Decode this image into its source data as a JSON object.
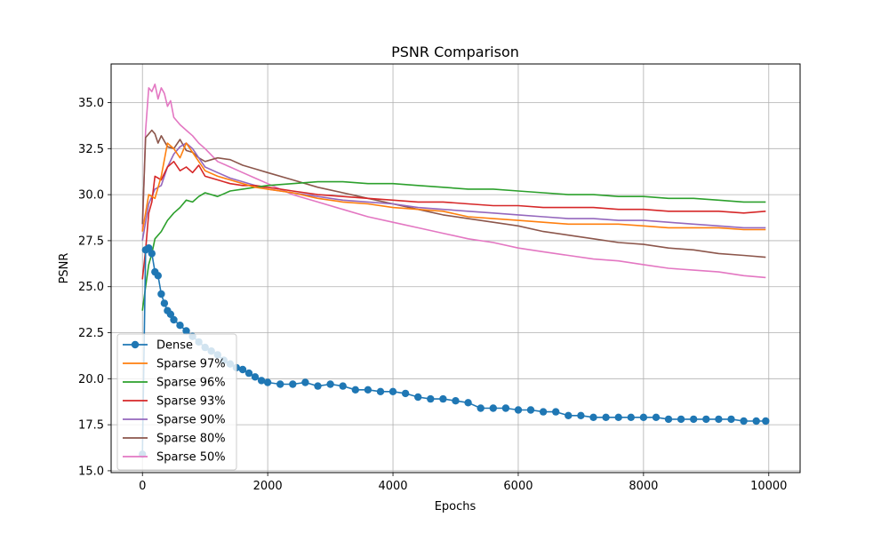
{
  "chart_data": {
    "type": "line",
    "title": "PSNR Comparison",
    "xlabel": "Epochs",
    "ylabel": "PSNR",
    "xlim": [
      -500,
      10500
    ],
    "ylim": [
      14.9,
      37.1
    ],
    "xticks": [
      0,
      2000,
      4000,
      6000,
      8000,
      10000
    ],
    "yticks": [
      15.0,
      17.5,
      20.0,
      22.5,
      25.0,
      27.5,
      30.0,
      32.5,
      35.0
    ],
    "grid": true,
    "legend_position": "lower-left",
    "series": [
      {
        "name": "Dense",
        "color": "#1f77b4",
        "marker": "circle",
        "points": [
          [
            0,
            15.9
          ],
          [
            50,
            27.0
          ],
          [
            100,
            27.1
          ],
          [
            150,
            26.8
          ],
          [
            200,
            25.8
          ],
          [
            250,
            25.6
          ],
          [
            300,
            24.6
          ],
          [
            350,
            24.1
          ],
          [
            400,
            23.7
          ],
          [
            450,
            23.5
          ],
          [
            500,
            23.2
          ],
          [
            600,
            22.9
          ],
          [
            700,
            22.6
          ],
          [
            800,
            22.3
          ],
          [
            900,
            22.0
          ],
          [
            1000,
            21.7
          ],
          [
            1100,
            21.5
          ],
          [
            1200,
            21.3
          ],
          [
            1300,
            21.0
          ],
          [
            1400,
            20.8
          ],
          [
            1500,
            20.6
          ],
          [
            1600,
            20.5
          ],
          [
            1700,
            20.3
          ],
          [
            1800,
            20.1
          ],
          [
            1900,
            19.9
          ],
          [
            2000,
            19.8
          ],
          [
            2200,
            19.7
          ],
          [
            2400,
            19.7
          ],
          [
            2600,
            19.8
          ],
          [
            2800,
            19.6
          ],
          [
            3000,
            19.7
          ],
          [
            3200,
            19.6
          ],
          [
            3400,
            19.4
          ],
          [
            3600,
            19.4
          ],
          [
            3800,
            19.3
          ],
          [
            4000,
            19.3
          ],
          [
            4200,
            19.2
          ],
          [
            4400,
            19.0
          ],
          [
            4600,
            18.9
          ],
          [
            4800,
            18.9
          ],
          [
            5000,
            18.8
          ],
          [
            5200,
            18.7
          ],
          [
            5400,
            18.4
          ],
          [
            5600,
            18.4
          ],
          [
            5800,
            18.4
          ],
          [
            6000,
            18.3
          ],
          [
            6200,
            18.3
          ],
          [
            6400,
            18.2
          ],
          [
            6600,
            18.2
          ],
          [
            6800,
            18.0
          ],
          [
            7000,
            18.0
          ],
          [
            7200,
            17.9
          ],
          [
            7400,
            17.9
          ],
          [
            7600,
            17.9
          ],
          [
            7800,
            17.9
          ],
          [
            8000,
            17.9
          ],
          [
            8200,
            17.9
          ],
          [
            8400,
            17.8
          ],
          [
            8600,
            17.8
          ],
          [
            8800,
            17.8
          ],
          [
            9000,
            17.8
          ],
          [
            9200,
            17.8
          ],
          [
            9400,
            17.8
          ],
          [
            9600,
            17.7
          ],
          [
            9800,
            17.7
          ],
          [
            9950,
            17.7
          ]
        ]
      },
      {
        "name": "Sparse 97%",
        "color": "#ff7f0e",
        "points": [
          [
            0,
            28.0
          ],
          [
            100,
            30.0
          ],
          [
            200,
            29.8
          ],
          [
            300,
            31.0
          ],
          [
            400,
            32.8
          ],
          [
            500,
            32.5
          ],
          [
            600,
            32.0
          ],
          [
            700,
            32.8
          ],
          [
            800,
            32.3
          ],
          [
            900,
            31.8
          ],
          [
            1000,
            31.3
          ],
          [
            1200,
            31.0
          ],
          [
            1400,
            30.8
          ],
          [
            1600,
            30.6
          ],
          [
            1800,
            30.4
          ],
          [
            2000,
            30.3
          ],
          [
            2400,
            30.1
          ],
          [
            2800,
            29.8
          ],
          [
            3200,
            29.6
          ],
          [
            3600,
            29.5
          ],
          [
            4000,
            29.3
          ],
          [
            4400,
            29.2
          ],
          [
            4800,
            29.1
          ],
          [
            5200,
            28.8
          ],
          [
            5600,
            28.7
          ],
          [
            6000,
            28.6
          ],
          [
            6400,
            28.5
          ],
          [
            6800,
            28.4
          ],
          [
            7200,
            28.4
          ],
          [
            7600,
            28.4
          ],
          [
            8000,
            28.3
          ],
          [
            8400,
            28.2
          ],
          [
            8800,
            28.2
          ],
          [
            9200,
            28.2
          ],
          [
            9600,
            28.1
          ],
          [
            9950,
            28.1
          ]
        ]
      },
      {
        "name": "Sparse 96%",
        "color": "#2ca02c",
        "points": [
          [
            0,
            23.7
          ],
          [
            50,
            25.0
          ],
          [
            100,
            26.2
          ],
          [
            150,
            26.8
          ],
          [
            200,
            27.6
          ],
          [
            300,
            28.0
          ],
          [
            400,
            28.6
          ],
          [
            500,
            29.0
          ],
          [
            600,
            29.3
          ],
          [
            700,
            29.7
          ],
          [
            800,
            29.6
          ],
          [
            900,
            29.9
          ],
          [
            1000,
            30.1
          ],
          [
            1200,
            29.9
          ],
          [
            1400,
            30.2
          ],
          [
            1600,
            30.3
          ],
          [
            1800,
            30.4
          ],
          [
            2000,
            30.5
          ],
          [
            2400,
            30.6
          ],
          [
            2800,
            30.7
          ],
          [
            3200,
            30.7
          ],
          [
            3600,
            30.6
          ],
          [
            4000,
            30.6
          ],
          [
            4400,
            30.5
          ],
          [
            4800,
            30.4
          ],
          [
            5200,
            30.3
          ],
          [
            5600,
            30.3
          ],
          [
            6000,
            30.2
          ],
          [
            6400,
            30.1
          ],
          [
            6800,
            30.0
          ],
          [
            7200,
            30.0
          ],
          [
            7600,
            29.9
          ],
          [
            8000,
            29.9
          ],
          [
            8400,
            29.8
          ],
          [
            8800,
            29.8
          ],
          [
            9200,
            29.7
          ],
          [
            9600,
            29.6
          ],
          [
            9950,
            29.6
          ]
        ]
      },
      {
        "name": "Sparse 93%",
        "color": "#d62728",
        "points": [
          [
            0,
            25.4
          ],
          [
            50,
            27.0
          ],
          [
            100,
            29.0
          ],
          [
            150,
            29.6
          ],
          [
            200,
            31.0
          ],
          [
            300,
            30.8
          ],
          [
            400,
            31.5
          ],
          [
            500,
            31.8
          ],
          [
            600,
            31.3
          ],
          [
            700,
            31.5
          ],
          [
            800,
            31.2
          ],
          [
            900,
            31.6
          ],
          [
            1000,
            31.0
          ],
          [
            1200,
            30.8
          ],
          [
            1400,
            30.6
          ],
          [
            1600,
            30.5
          ],
          [
            1800,
            30.5
          ],
          [
            2000,
            30.4
          ],
          [
            2400,
            30.2
          ],
          [
            2800,
            30.0
          ],
          [
            3200,
            29.9
          ],
          [
            3600,
            29.8
          ],
          [
            4000,
            29.7
          ],
          [
            4400,
            29.6
          ],
          [
            4800,
            29.6
          ],
          [
            5200,
            29.5
          ],
          [
            5600,
            29.4
          ],
          [
            6000,
            29.4
          ],
          [
            6400,
            29.3
          ],
          [
            6800,
            29.3
          ],
          [
            7200,
            29.3
          ],
          [
            7600,
            29.2
          ],
          [
            8000,
            29.2
          ],
          [
            8400,
            29.1
          ],
          [
            8800,
            29.1
          ],
          [
            9200,
            29.1
          ],
          [
            9600,
            29.0
          ],
          [
            9950,
            29.1
          ]
        ]
      },
      {
        "name": "Sparse 90%",
        "color": "#9467bd",
        "points": [
          [
            0,
            27.5
          ],
          [
            100,
            29.5
          ],
          [
            200,
            30.3
          ],
          [
            300,
            30.5
          ],
          [
            400,
            31.5
          ],
          [
            500,
            32.2
          ],
          [
            600,
            32.6
          ],
          [
            700,
            32.8
          ],
          [
            800,
            32.5
          ],
          [
            900,
            32.0
          ],
          [
            1000,
            31.5
          ],
          [
            1200,
            31.2
          ],
          [
            1400,
            30.9
          ],
          [
            1600,
            30.7
          ],
          [
            1800,
            30.5
          ],
          [
            2000,
            30.3
          ],
          [
            2400,
            30.1
          ],
          [
            2800,
            29.9
          ],
          [
            3200,
            29.7
          ],
          [
            3600,
            29.6
          ],
          [
            4000,
            29.5
          ],
          [
            4400,
            29.3
          ],
          [
            4800,
            29.2
          ],
          [
            5200,
            29.1
          ],
          [
            5600,
            29.0
          ],
          [
            6000,
            28.9
          ],
          [
            6400,
            28.8
          ],
          [
            6800,
            28.7
          ],
          [
            7200,
            28.7
          ],
          [
            7600,
            28.6
          ],
          [
            8000,
            28.6
          ],
          [
            8400,
            28.5
          ],
          [
            8800,
            28.4
          ],
          [
            9200,
            28.3
          ],
          [
            9600,
            28.2
          ],
          [
            9950,
            28.2
          ]
        ]
      },
      {
        "name": "Sparse 80%",
        "color": "#8c564b",
        "points": [
          [
            0,
            28.4
          ],
          [
            50,
            33.1
          ],
          [
            100,
            33.3
          ],
          [
            150,
            33.5
          ],
          [
            200,
            33.3
          ],
          [
            250,
            32.8
          ],
          [
            300,
            33.2
          ],
          [
            400,
            32.6
          ],
          [
            500,
            32.5
          ],
          [
            600,
            33.0
          ],
          [
            700,
            32.4
          ],
          [
            800,
            32.3
          ],
          [
            900,
            32.0
          ],
          [
            1000,
            31.8
          ],
          [
            1200,
            32.0
          ],
          [
            1400,
            31.9
          ],
          [
            1600,
            31.6
          ],
          [
            1800,
            31.4
          ],
          [
            2000,
            31.2
          ],
          [
            2400,
            30.8
          ],
          [
            2800,
            30.4
          ],
          [
            3200,
            30.1
          ],
          [
            3600,
            29.8
          ],
          [
            4000,
            29.5
          ],
          [
            4400,
            29.2
          ],
          [
            4800,
            28.9
          ],
          [
            5200,
            28.7
          ],
          [
            5600,
            28.5
          ],
          [
            6000,
            28.3
          ],
          [
            6400,
            28.0
          ],
          [
            6800,
            27.8
          ],
          [
            7200,
            27.6
          ],
          [
            7600,
            27.4
          ],
          [
            8000,
            27.3
          ],
          [
            8400,
            27.1
          ],
          [
            8800,
            27.0
          ],
          [
            9200,
            26.8
          ],
          [
            9600,
            26.7
          ],
          [
            9950,
            26.6
          ]
        ]
      },
      {
        "name": "Sparse 50%",
        "color": "#e377c2",
        "points": [
          [
            0,
            28.0
          ],
          [
            50,
            33.5
          ],
          [
            100,
            35.8
          ],
          [
            150,
            35.6
          ],
          [
            200,
            36.0
          ],
          [
            250,
            35.2
          ],
          [
            300,
            35.8
          ],
          [
            350,
            35.5
          ],
          [
            400,
            34.8
          ],
          [
            450,
            35.1
          ],
          [
            500,
            34.2
          ],
          [
            600,
            33.8
          ],
          [
            700,
            33.5
          ],
          [
            800,
            33.2
          ],
          [
            900,
            32.8
          ],
          [
            1000,
            32.5
          ],
          [
            1200,
            31.8
          ],
          [
            1400,
            31.5
          ],
          [
            1600,
            31.2
          ],
          [
            1800,
            30.9
          ],
          [
            2000,
            30.6
          ],
          [
            2400,
            30.0
          ],
          [
            2800,
            29.6
          ],
          [
            3200,
            29.2
          ],
          [
            3600,
            28.8
          ],
          [
            4000,
            28.5
          ],
          [
            4400,
            28.2
          ],
          [
            4800,
            27.9
          ],
          [
            5200,
            27.6
          ],
          [
            5600,
            27.4
          ],
          [
            6000,
            27.1
          ],
          [
            6400,
            26.9
          ],
          [
            6800,
            26.7
          ],
          [
            7200,
            26.5
          ],
          [
            7600,
            26.4
          ],
          [
            8000,
            26.2
          ],
          [
            8400,
            26.0
          ],
          [
            8800,
            25.9
          ],
          [
            9200,
            25.8
          ],
          [
            9600,
            25.6
          ],
          [
            9950,
            25.5
          ]
        ]
      }
    ]
  }
}
